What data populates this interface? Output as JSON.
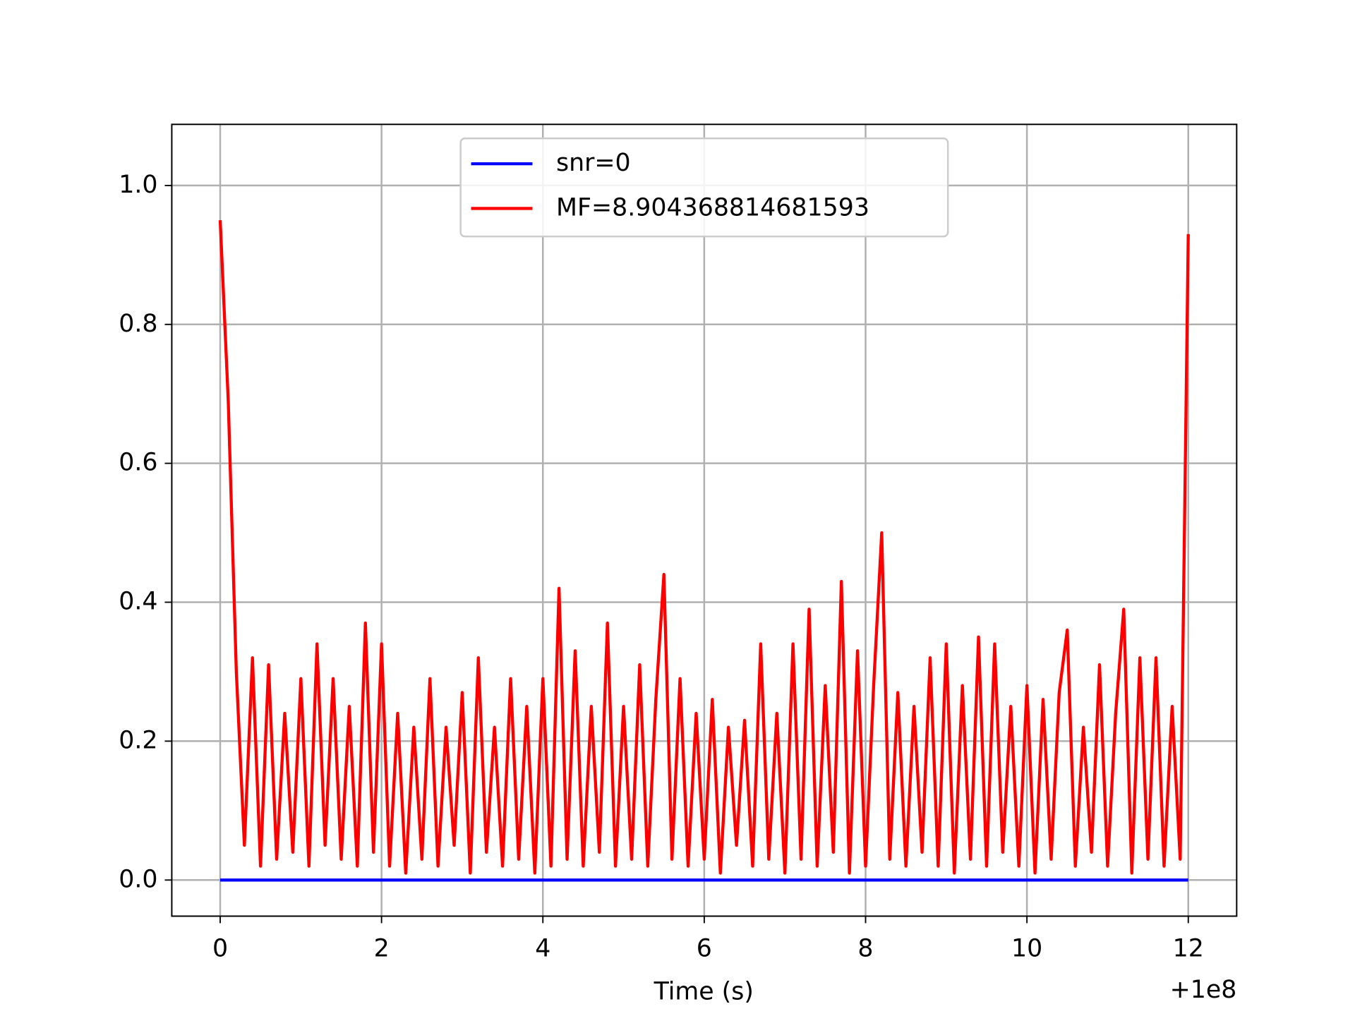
{
  "chart_data": {
    "type": "line",
    "x_label": "Time (s)",
    "x_offset_label": "+1e8",
    "xlim": [
      -0.6,
      12.6
    ],
    "ylim": [
      -0.052,
      1.088
    ],
    "xticks": [
      0,
      2,
      4,
      6,
      8,
      10,
      12
    ],
    "yticks": [
      {
        "value": 0,
        "label": "0.0"
      },
      0.2,
      0.4,
      0.6,
      0.8,
      {
        "value": 1,
        "label": "1.0"
      }
    ],
    "grid": true,
    "legend": "upper center",
    "series": [
      {
        "name": "snr=0",
        "color": "#0000ff",
        "x": [
          0,
          12
        ],
        "values": [
          0,
          0
        ]
      },
      {
        "name": "MF=8.904368814681593",
        "color": "#ff0000",
        "x": [
          0,
          0.1,
          0.2,
          0.3,
          0.4,
          0.5,
          0.6,
          0.7,
          0.8,
          0.9,
          1,
          1.1,
          1.2,
          1.3,
          1.4,
          1.5,
          1.6,
          1.7,
          1.8,
          1.9,
          2,
          2.1,
          2.2,
          2.3,
          2.4,
          2.5,
          2.6,
          2.7,
          2.8,
          2.9,
          3,
          3.1,
          3.2,
          3.3,
          3.4,
          3.5,
          3.6,
          3.7,
          3.8,
          3.9,
          4,
          4.1,
          4.2,
          4.3,
          4.4,
          4.5,
          4.6,
          4.7,
          4.8,
          4.9,
          5,
          5.1,
          5.2,
          5.3,
          5.4,
          5.5,
          5.6,
          5.7,
          5.8,
          5.9,
          6,
          6.1,
          6.2,
          6.3,
          6.4,
          6.5,
          6.6,
          6.7,
          6.8,
          6.9,
          7,
          7.1,
          7.2,
          7.3,
          7.4,
          7.5,
          7.6,
          7.7,
          7.8,
          7.9,
          8,
          8.1,
          8.2,
          8.3,
          8.4,
          8.5,
          8.6,
          8.7,
          8.8,
          8.9,
          9,
          9.1,
          9.2,
          9.3,
          9.4,
          9.5,
          9.6,
          9.7,
          9.8,
          9.9,
          10,
          10.1,
          10.2,
          10.3,
          10.4,
          10.5,
          10.6,
          10.7,
          10.8,
          10.9,
          11,
          11.1,
          11.2,
          11.3,
          11.4,
          11.5,
          11.6,
          11.7,
          11.8,
          11.9,
          12
        ],
        "values": [
          0.95,
          0.69,
          0.3,
          0.05,
          0.32,
          0.02,
          0.31,
          0.03,
          0.24,
          0.04,
          0.29,
          0.02,
          0.34,
          0.05,
          0.29,
          0.03,
          0.25,
          0.02,
          0.37,
          0.04,
          0.34,
          0.02,
          0.24,
          0.01,
          0.22,
          0.03,
          0.29,
          0.02,
          0.22,
          0.05,
          0.27,
          0.01,
          0.32,
          0.04,
          0.22,
          0.02,
          0.29,
          0.03,
          0.25,
          0.01,
          0.29,
          0.02,
          0.42,
          0.03,
          0.33,
          0.02,
          0.25,
          0.04,
          0.37,
          0.02,
          0.25,
          0.03,
          0.31,
          0.02,
          0.26,
          0.44,
          0.03,
          0.29,
          0.02,
          0.24,
          0.03,
          0.26,
          0.01,
          0.22,
          0.05,
          0.23,
          0.02,
          0.34,
          0.03,
          0.24,
          0.01,
          0.34,
          0.03,
          0.39,
          0.02,
          0.28,
          0.04,
          0.43,
          0.01,
          0.33,
          0.02,
          0.28,
          0.5,
          0.03,
          0.27,
          0.02,
          0.25,
          0.04,
          0.32,
          0.02,
          0.34,
          0.01,
          0.28,
          0.03,
          0.35,
          0.02,
          0.34,
          0.04,
          0.25,
          0.02,
          0.28,
          0.01,
          0.26,
          0.03,
          0.27,
          0.36,
          0.02,
          0.22,
          0.04,
          0.31,
          0.02,
          0.24,
          0.39,
          0.01,
          0.32,
          0.03,
          0.32,
          0.02,
          0.25,
          0.03,
          0.93
        ]
      }
    ]
  }
}
